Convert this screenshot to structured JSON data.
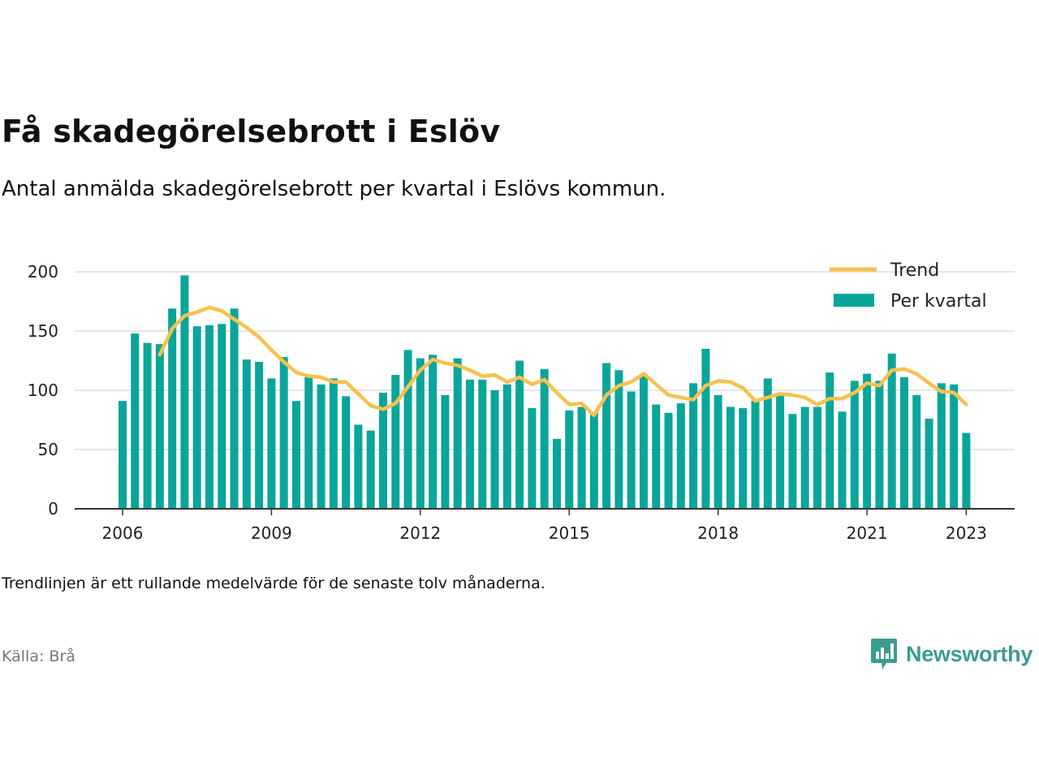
{
  "title": "Få skadegörelsebrott i Eslöv",
  "subtitle": "Antal anmälda skadegörelsebrott per kvartal i Eslövs kommun.",
  "note": "Trendlinjen är ett rullande medelvärde för de senaste tolv månaderna.",
  "source": "Källa: Brå",
  "brand": {
    "name": "Newsworthy",
    "icon": "newsworthy-logo-icon",
    "color": "#3c9c92"
  },
  "chart_data": {
    "type": "bar",
    "title": "",
    "xlabel": "",
    "ylabel": "",
    "ylim": [
      0,
      200
    ],
    "yticks": [
      0,
      50,
      100,
      150,
      200
    ],
    "xticks": [
      "2006",
      "2009",
      "2012",
      "2015",
      "2018",
      "2021",
      "2023"
    ],
    "grid": true,
    "legend_position": "top-right",
    "legend": [
      {
        "label": "Trend",
        "kind": "line",
        "color": "#f7c14e"
      },
      {
        "label": "Per kvartal",
        "kind": "bar",
        "color": "#0aa59a"
      }
    ],
    "x": [
      "2006-Q1",
      "2006-Q2",
      "2006-Q3",
      "2006-Q4",
      "2007-Q1",
      "2007-Q2",
      "2007-Q3",
      "2007-Q4",
      "2008-Q1",
      "2008-Q2",
      "2008-Q3",
      "2008-Q4",
      "2009-Q1",
      "2009-Q2",
      "2009-Q3",
      "2009-Q4",
      "2010-Q1",
      "2010-Q2",
      "2010-Q3",
      "2010-Q4",
      "2011-Q1",
      "2011-Q2",
      "2011-Q3",
      "2011-Q4",
      "2012-Q1",
      "2012-Q2",
      "2012-Q3",
      "2012-Q4",
      "2013-Q1",
      "2013-Q2",
      "2013-Q3",
      "2013-Q4",
      "2014-Q1",
      "2014-Q2",
      "2014-Q3",
      "2014-Q4",
      "2015-Q1",
      "2015-Q2",
      "2015-Q3",
      "2015-Q4",
      "2016-Q1",
      "2016-Q2",
      "2016-Q3",
      "2016-Q4",
      "2017-Q1",
      "2017-Q2",
      "2017-Q3",
      "2017-Q4",
      "2018-Q1",
      "2018-Q2",
      "2018-Q3",
      "2018-Q4",
      "2019-Q1",
      "2019-Q2",
      "2019-Q3",
      "2019-Q4",
      "2020-Q1",
      "2020-Q2",
      "2020-Q3",
      "2020-Q4",
      "2021-Q1",
      "2021-Q2",
      "2021-Q3",
      "2021-Q4",
      "2022-Q1",
      "2022-Q2",
      "2022-Q3",
      "2022-Q4",
      "2023-Q1"
    ],
    "series": [
      {
        "name": "Per kvartal",
        "type": "bar",
        "color": "#0aa59a",
        "values": [
          91,
          148,
          140,
          139,
          169,
          197,
          154,
          155,
          156,
          169,
          126,
          124,
          110,
          128,
          91,
          111,
          105,
          110,
          95,
          71,
          66,
          98,
          113,
          134,
          127,
          130,
          96,
          127,
          109,
          109,
          100,
          105,
          125,
          85,
          118,
          59,
          83,
          86,
          81,
          123,
          117,
          99,
          112,
          88,
          81,
          89,
          106,
          135,
          96,
          86,
          85,
          91,
          110,
          96,
          80,
          86,
          86,
          115,
          82,
          108,
          114,
          108,
          131,
          111,
          96,
          76,
          106,
          105,
          64
        ]
      },
      {
        "name": "Trend",
        "type": "line",
        "color": "#f7c14e",
        "values": [
          null,
          null,
          null,
          130,
          152,
          163,
          166,
          170,
          167,
          160,
          153,
          145,
          134,
          124,
          115,
          112,
          111,
          107,
          107,
          97,
          87,
          84,
          89,
          103,
          117,
          126,
          123,
          121,
          117,
          112,
          113,
          107,
          111,
          105,
          109,
          98,
          88,
          89,
          79,
          96,
          104,
          107,
          114,
          105,
          96,
          94,
          92,
          104,
          108,
          107,
          102,
          91,
          94,
          97,
          96,
          94,
          88,
          93,
          93,
          98,
          106,
          104,
          117,
          118,
          114,
          106,
          99,
          98,
          88
        ]
      }
    ]
  }
}
